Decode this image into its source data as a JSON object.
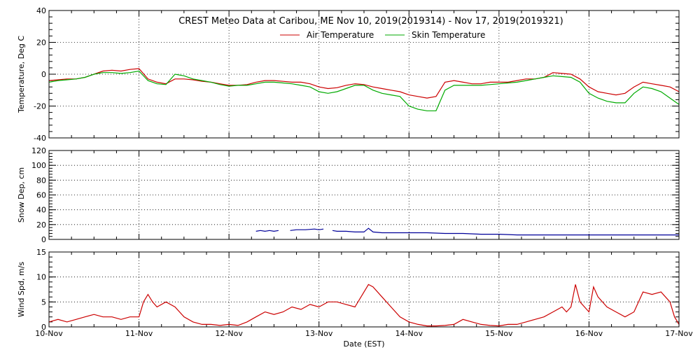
{
  "title": "CREST Meteo Data at Caribou, ME   Nov 10, 2019(2019314) - Nov 17, 2019(2019321)",
  "xlabel": "Date (EST)",
  "x_ticks": [
    "10-Nov",
    "11-Nov",
    "12-Nov",
    "13-Nov",
    "14-Nov",
    "15-Nov",
    "16-Nov",
    "17-Nov"
  ],
  "colors": {
    "air": "#cc0000",
    "skin": "#00aa00",
    "snow": "#000099",
    "wind": "#cc0000",
    "grid": "#000000"
  },
  "chart_data": [
    {
      "type": "line",
      "panel": "temperature",
      "ylabel": "Temperature, Deg C",
      "ylim": [
        -40,
        40
      ],
      "yticks": [
        -40,
        -20,
        0,
        20,
        40
      ],
      "xlim": [
        0,
        7
      ],
      "grid": true,
      "legend": "top-center",
      "series": [
        {
          "name": "Air Temperature",
          "x": [
            0,
            0.1,
            0.2,
            0.3,
            0.4,
            0.5,
            0.6,
            0.7,
            0.8,
            0.9,
            1.0,
            1.1,
            1.2,
            1.3,
            1.4,
            1.5,
            1.6,
            1.7,
            1.8,
            1.9,
            2.0,
            2.1,
            2.2,
            2.3,
            2.4,
            2.5,
            2.6,
            2.7,
            2.8,
            2.9,
            3.0,
            3.1,
            3.2,
            3.3,
            3.4,
            3.5,
            3.6,
            3.7,
            3.8,
            3.9,
            4.0,
            4.1,
            4.2,
            4.3,
            4.4,
            4.5,
            4.6,
            4.7,
            4.8,
            4.9,
            5.0,
            5.1,
            5.2,
            5.3,
            5.4,
            5.5,
            5.6,
            5.7,
            5.8,
            5.9,
            6.0,
            6.1,
            6.2,
            6.3,
            6.4,
            6.5,
            6.6,
            6.7,
            6.8,
            6.9,
            7.0
          ],
          "values": [
            -4,
            -3.5,
            -3,
            -3,
            -2,
            0,
            2,
            2.5,
            2,
            3,
            3.5,
            -3,
            -5,
            -6,
            -3,
            -3,
            -3.5,
            -4.5,
            -5,
            -6,
            -7,
            -7,
            -6.5,
            -5,
            -4,
            -4,
            -4.5,
            -5,
            -5,
            -6,
            -8,
            -9,
            -8.5,
            -7,
            -6,
            -6.5,
            -8,
            -9,
            -10,
            -11,
            -13,
            -14,
            -15,
            -14,
            -5,
            -4,
            -5,
            -6,
            -6,
            -5,
            -5,
            -5,
            -4,
            -3,
            -3,
            -2,
            1,
            0.5,
            0,
            -3,
            -8,
            -11,
            -12,
            -13,
            -12,
            -8,
            -5,
            -6,
            -7,
            -8,
            -11
          ]
        },
        {
          "name": "Skin Temperature",
          "x": [
            0,
            0.1,
            0.2,
            0.3,
            0.4,
            0.5,
            0.6,
            0.7,
            0.8,
            0.9,
            1.0,
            1.1,
            1.2,
            1.3,
            1.4,
            1.5,
            1.6,
            1.7,
            1.8,
            1.9,
            2.0,
            2.1,
            2.2,
            2.3,
            2.4,
            2.5,
            2.6,
            2.7,
            2.8,
            2.9,
            3.0,
            3.1,
            3.2,
            3.3,
            3.4,
            3.5,
            3.6,
            3.7,
            3.8,
            3.9,
            4.0,
            4.1,
            4.2,
            4.3,
            4.4,
            4.5,
            4.6,
            4.7,
            4.8,
            4.9,
            5.0,
            5.1,
            5.2,
            5.3,
            5.4,
            5.5,
            5.6,
            5.7,
            5.8,
            5.9,
            6.0,
            6.1,
            6.2,
            6.3,
            6.4,
            6.5,
            6.6,
            6.7,
            6.8,
            6.9,
            7.0
          ],
          "values": [
            -5,
            -4,
            -3.5,
            -3,
            -2,
            0,
            1,
            1,
            0.5,
            1,
            2,
            -4,
            -6,
            -6.5,
            0,
            -1,
            -3,
            -4,
            -5,
            -6.5,
            -7.5,
            -7,
            -7,
            -6,
            -5,
            -5,
            -5.5,
            -6,
            -7,
            -8,
            -11,
            -12,
            -11,
            -9,
            -7,
            -7,
            -10,
            -12,
            -13,
            -14,
            -20,
            -22,
            -23,
            -23,
            -10,
            -7,
            -7,
            -7,
            -7,
            -6.5,
            -6,
            -5.5,
            -5,
            -4,
            -3,
            -2,
            -1,
            -1.5,
            -2,
            -5,
            -12,
            -15,
            -17,
            -18,
            -18,
            -12,
            -8,
            -9,
            -11,
            -15,
            -19
          ]
        }
      ]
    },
    {
      "type": "line",
      "panel": "snow",
      "ylabel": "Snow Dep, cm",
      "ylim": [
        0,
        120
      ],
      "yticks": [
        0,
        20,
        40,
        60,
        80,
        100,
        120
      ],
      "xlim": [
        0,
        7
      ],
      "grid": true,
      "series": [
        {
          "name": "",
          "segments": [
            {
              "x": [
                2.3,
                2.35,
                2.4,
                2.45,
                2.5,
                2.55
              ],
              "values": [
                11,
                12,
                11,
                12,
                11,
                12
              ]
            },
            {
              "x": [
                2.68,
                2.75,
                2.85,
                2.95,
                3.0,
                3.05
              ],
              "values": [
                12,
                13,
                13,
                14,
                13,
                14
              ]
            },
            {
              "x": [
                3.15,
                3.2,
                3.3,
                3.4,
                3.5,
                3.55,
                3.6,
                3.7,
                3.8,
                3.9,
                4.0,
                4.2,
                4.4,
                4.6,
                4.8,
                5.0,
                5.2,
                5.4,
                5.6,
                5.8,
                6.0,
                6.2,
                6.4,
                6.6,
                6.8,
                7.0
              ],
              "values": [
                12,
                11,
                11,
                10,
                10,
                15,
                10,
                9,
                9,
                9,
                9,
                9,
                8,
                8,
                7,
                7,
                6,
                6,
                6,
                6,
                6,
                6,
                6,
                6,
                6,
                6
              ]
            }
          ]
        }
      ]
    },
    {
      "type": "line",
      "panel": "wind",
      "ylabel": "Wind Spd, m/s",
      "ylim": [
        0,
        15
      ],
      "yticks": [
        0,
        5,
        10,
        15
      ],
      "xlim": [
        0,
        7
      ],
      "grid": true,
      "series": [
        {
          "name": "",
          "x": [
            0,
            0.1,
            0.2,
            0.3,
            0.4,
            0.5,
            0.6,
            0.7,
            0.8,
            0.9,
            1.0,
            1.05,
            1.1,
            1.15,
            1.2,
            1.3,
            1.4,
            1.5,
            1.6,
            1.7,
            1.8,
            1.9,
            2.0,
            2.1,
            2.2,
            2.3,
            2.4,
            2.5,
            2.6,
            2.7,
            2.8,
            2.9,
            3.0,
            3.1,
            3.2,
            3.3,
            3.4,
            3.5,
            3.55,
            3.6,
            3.7,
            3.8,
            3.9,
            4.0,
            4.1,
            4.2,
            4.3,
            4.4,
            4.5,
            4.6,
            4.7,
            4.8,
            4.9,
            5.0,
            5.1,
            5.2,
            5.3,
            5.4,
            5.5,
            5.6,
            5.7,
            5.75,
            5.8,
            5.85,
            5.9,
            5.95,
            6.0,
            6.05,
            6.1,
            6.2,
            6.3,
            6.4,
            6.5,
            6.6,
            6.7,
            6.8,
            6.9,
            6.95,
            7.0
          ],
          "values": [
            1,
            1.5,
            1,
            1.5,
            2,
            2.5,
            2,
            2,
            1.5,
            2,
            2,
            5,
            6.5,
            5,
            4,
            5,
            4,
            2,
            1,
            0.5,
            0.5,
            0.3,
            0.5,
            0.3,
            1,
            2,
            3,
            2.5,
            3,
            4,
            3.5,
            4.5,
            4,
            5,
            5,
            4.5,
            4,
            7,
            8.5,
            8,
            6,
            4,
            2,
            1,
            0.5,
            0.2,
            0.2,
            0.3,
            0.5,
            1.5,
            1,
            0.5,
            0.3,
            0.2,
            0.5,
            0.5,
            1,
            1.5,
            2,
            3,
            4,
            3,
            4,
            8.5,
            5,
            4,
            3,
            8,
            6,
            4,
            3,
            2,
            3,
            7,
            6.5,
            7,
            5,
            2,
            0.5
          ]
        }
      ]
    }
  ]
}
